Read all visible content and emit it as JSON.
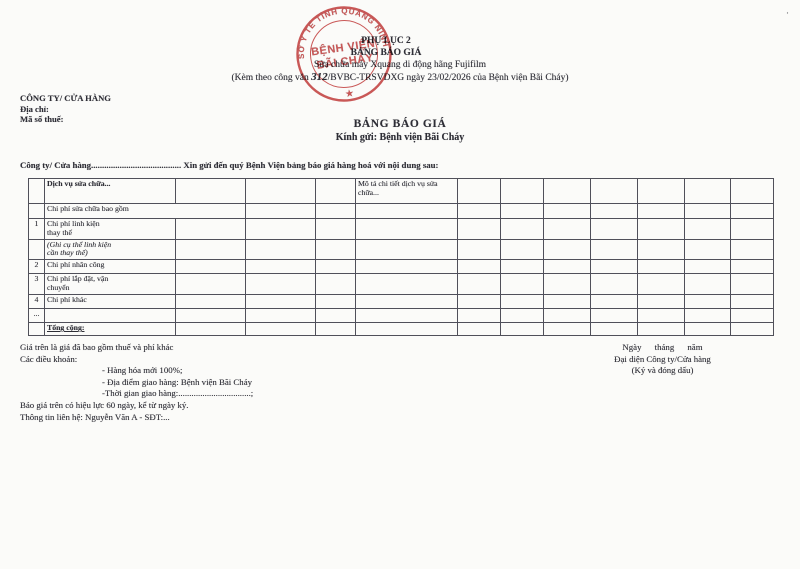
{
  "header": {
    "appendix": "PHỤ LỤC 2",
    "title": "BẢNG BÁO GIÁ",
    "subtitle": "Sửa chữa máy Xquang di động hãng Fujifilm",
    "reference_before": "(Kèm theo công văn ",
    "reference_number": "312",
    "reference_after": "/BVBC-TRSVDXG ngày 23/02/2026 của Bệnh viện Bãi Cháy)"
  },
  "stamp": {
    "ring_text": "SỞ Y TẾ TỈNH QUẢNG NINH",
    "center_line1": "BỆNH VIỆN",
    "center_line2": "BÃI CHÁY",
    "star": "★",
    "color": "#c23434"
  },
  "company_block": {
    "name_label": "CÔNG TY/ CỬA HÀNG",
    "address_label": "Địa chỉ:",
    "tax_code_label": "Mã số thuế:"
  },
  "quote_header": {
    "title": "BẢNG BÁO GIÁ",
    "recipient": "Kính gửi: Bệnh viện Bãi Cháy"
  },
  "intro_line": "Công ty/ Cửa hàng......................................... Xin gửi đến quý Bệnh Viện bảng báo giá hàng hoá với nội dung sau:",
  "table": {
    "service_header": "Dịch vụ sửa chữa...",
    "description_header": "Mô tả chi tiết dịch vụ sửa\nchữa...",
    "rows": [
      {
        "stt": "",
        "label": "Chi phí sửa chữa bao gồm"
      },
      {
        "stt": "1",
        "label": "Chi phí linh kiện\nthay thế"
      },
      {
        "stt": "",
        "label": "(Ghi cụ thể linh kiện\ncần thay thế)"
      },
      {
        "stt": "2",
        "label": "Chi phí nhân công"
      },
      {
        "stt": "3",
        "label": "Chi phí lắp đặt, vận\nchuyển"
      },
      {
        "stt": "4",
        "label": "Chi phí khác"
      },
      {
        "stt": "...",
        "label": ""
      },
      {
        "stt": "",
        "label": "Tổng cộng:"
      }
    ]
  },
  "terms": {
    "line1": "Giá trên là giá đã bao gồm thuế và phí khác",
    "line2": "Các điều khoản:",
    "item1": "- Hàng hóa mới 100%;",
    "item2": "- Địa điểm giao hàng: Bệnh viện Bãi Cháy",
    "item3": "-Thời gian giao hàng:.................................;",
    "line3": "Báo giá trên có hiệu lực 60 ngày, kể từ ngày ký.",
    "line4": "Thông tin liên hệ: Nguyễn Văn A - SĐT:..."
  },
  "signature": {
    "date_line": "Ngày      tháng      năm",
    "representative": "Đại diện Công ty/Cửa hàng",
    "note": "(Ký và đóng dấu)"
  },
  "artifact": "·"
}
